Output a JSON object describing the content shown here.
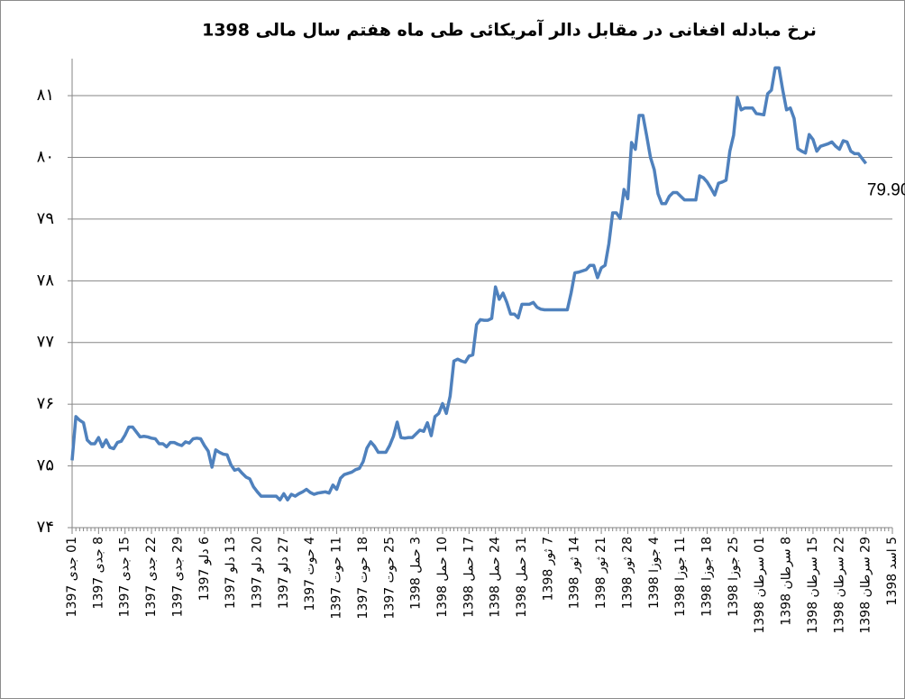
{
  "chart_data": {
    "type": "line",
    "title": "نرخ مبادله افغانی در مقابل دالر آمریکائی طی ماه هفتم  سال مالی 1398",
    "categories": [
      "01 جدی 1397",
      null,
      null,
      null,
      null,
      null,
      null,
      "8 جدی 1397",
      null,
      null,
      null,
      null,
      null,
      null,
      "15 جدی 1397",
      null,
      null,
      null,
      null,
      null,
      null,
      "22 جدی 1397",
      null,
      null,
      null,
      null,
      null,
      null,
      "29 جدی 1397",
      null,
      null,
      null,
      null,
      null,
      null,
      "6 دلو 1397",
      null,
      null,
      null,
      null,
      null,
      null,
      "13 دلو 1397",
      null,
      null,
      null,
      null,
      null,
      null,
      "20 دلو 1397",
      null,
      null,
      null,
      null,
      null,
      null,
      "27 دلو 1397",
      null,
      null,
      null,
      null,
      null,
      null,
      "4 حوت 1397",
      null,
      null,
      null,
      null,
      null,
      null,
      "11 حوت 1397",
      null,
      null,
      null,
      null,
      null,
      null,
      "18 حوت 1397",
      null,
      null,
      null,
      null,
      null,
      null,
      "25 حوت 1397",
      null,
      null,
      null,
      null,
      null,
      null,
      "3 حمل 1398",
      null,
      null,
      null,
      null,
      null,
      null,
      "10 حمل 1398",
      null,
      null,
      null,
      null,
      null,
      null,
      "17 حمل 1398",
      null,
      null,
      null,
      null,
      null,
      null,
      "24 حمل 1398",
      null,
      null,
      null,
      null,
      null,
      null,
      "31 حمل 1398",
      null,
      null,
      null,
      null,
      null,
      null,
      "7 ثور 1398",
      null,
      null,
      null,
      null,
      null,
      null,
      "14 ثور 1398",
      null,
      null,
      null,
      null,
      null,
      null,
      "21 ثور 1398",
      null,
      null,
      null,
      null,
      null,
      null,
      "28 ثور 1398",
      null,
      null,
      null,
      null,
      null,
      null,
      "4 جوزا 1398",
      null,
      null,
      null,
      null,
      null,
      null,
      "11 جوزا 1398",
      null,
      null,
      null,
      null,
      null,
      null,
      "18 جوزا 1398",
      null,
      null,
      null,
      null,
      null,
      null,
      "25 جوزا 1398",
      null,
      null,
      null,
      null,
      null,
      null,
      "01 سرطان 1398",
      null,
      null,
      null,
      null,
      null,
      null,
      "8 سرطان 1398",
      null,
      null,
      null,
      null,
      null,
      null,
      "15 سرطان 1398",
      null,
      null,
      null,
      null,
      null,
      null,
      "22 سرطان 1398",
      null,
      null,
      null,
      null,
      null,
      null,
      "29 سرطان 1398",
      null,
      null,
      null,
      null,
      null,
      null,
      "5 اسد 1398"
    ],
    "series": [
      {
        "color": "#4f81bd",
        "values": [
          75.09,
          75.8,
          75.74,
          75.7,
          75.42,
          75.36,
          75.36,
          75.46,
          75.31,
          75.42,
          75.3,
          75.28,
          75.38,
          75.4,
          75.5,
          75.63,
          75.63,
          75.55,
          75.47,
          75.48,
          75.47,
          75.45,
          75.44,
          75.36,
          75.36,
          75.31,
          75.38,
          75.38,
          75.35,
          75.33,
          75.39,
          75.37,
          75.44,
          75.45,
          75.44,
          75.33,
          75.24,
          74.98,
          75.26,
          75.22,
          75.19,
          75.18,
          75.02,
          74.93,
          74.95,
          74.88,
          74.82,
          74.79,
          74.66,
          74.58,
          74.51,
          74.51,
          74.51,
          74.51,
          74.51,
          74.45,
          74.55,
          74.45,
          74.54,
          74.51,
          74.55,
          74.58,
          74.62,
          74.57,
          74.54,
          74.56,
          74.57,
          74.58,
          74.56,
          74.69,
          74.62,
          74.8,
          74.86,
          74.88,
          74.9,
          74.94,
          74.96,
          75.07,
          75.29,
          75.39,
          75.32,
          75.22,
          75.22,
          75.22,
          75.33,
          75.48,
          75.71,
          75.46,
          75.45,
          75.46,
          75.46,
          75.52,
          75.58,
          75.56,
          75.7,
          75.49,
          75.8,
          75.85,
          76.01,
          75.85,
          76.13,
          76.7,
          76.73,
          76.7,
          76.68,
          76.78,
          76.8,
          77.29,
          77.37,
          77.36,
          77.36,
          77.39,
          77.9,
          77.7,
          77.8,
          77.65,
          77.46,
          77.46,
          77.4,
          77.62,
          77.62,
          77.62,
          77.65,
          77.57,
          77.54,
          77.53,
          77.53,
          77.53,
          77.53,
          77.53,
          77.53,
          77.53,
          77.8,
          78.13,
          78.14,
          78.16,
          78.18,
          78.25,
          78.25,
          78.05,
          78.21,
          78.25,
          78.6,
          79.1,
          79.1,
          79.01,
          79.48,
          79.33,
          80.24,
          80.13,
          80.68,
          80.68,
          80.35,
          80.0,
          79.8,
          79.41,
          79.25,
          79.25,
          79.37,
          79.43,
          79.43,
          79.37,
          79.31,
          79.31,
          79.31,
          79.31,
          79.7,
          79.67,
          79.6,
          79.5,
          79.39,
          79.58,
          79.6,
          79.63,
          80.1,
          80.36,
          80.97,
          80.77,
          80.8,
          80.8,
          80.8,
          80.71,
          80.7,
          80.69,
          81.03,
          81.09,
          81.45,
          81.45,
          81.09,
          80.77,
          80.8,
          80.63,
          80.14,
          80.1,
          80.07,
          80.37,
          80.29,
          80.1,
          80.18,
          80.2,
          80.22,
          80.25,
          80.18,
          80.13,
          80.27,
          80.25,
          80.1,
          80.06,
          80.06,
          79.98,
          79.9,
          null,
          null,
          null,
          null,
          null,
          null,
          null
        ],
        "value_labels": [
          null,
          null,
          null,
          null,
          null,
          null,
          null,
          null,
          null,
          null,
          null,
          null,
          null,
          null,
          null,
          null,
          null,
          null,
          null,
          null,
          null,
          null,
          null,
          null,
          null,
          null,
          null,
          null,
          null,
          null,
          null,
          null,
          null,
          null,
          null,
          null,
          null,
          null,
          null,
          null,
          null,
          null,
          null,
          null,
          null,
          null,
          null,
          null,
          null,
          null,
          null,
          null,
          null,
          null,
          null,
          null,
          null,
          null,
          null,
          null,
          null,
          null,
          null,
          null,
          null,
          null,
          null,
          null,
          null,
          null,
          null,
          null,
          null,
          null,
          null,
          null,
          null,
          null,
          null,
          null,
          null,
          null,
          null,
          null,
          null,
          null,
          null,
          null,
          null,
          null,
          null,
          null,
          null,
          null,
          null,
          null,
          null,
          null,
          null,
          null,
          null,
          null,
          null,
          null,
          null,
          null,
          null,
          null,
          null,
          null,
          null,
          null,
          null,
          null,
          null,
          null,
          null,
          null,
          null,
          null,
          null,
          null,
          null,
          null,
          null,
          null,
          null,
          null,
          null,
          null,
          null,
          null,
          null,
          null,
          null,
          null,
          null,
          null,
          null,
          null,
          null,
          null,
          null,
          null,
          null,
          null,
          null,
          null,
          null,
          null,
          null,
          null,
          null,
          null,
          null,
          null,
          null,
          null,
          null,
          null,
          null,
          null,
          null,
          null,
          null,
          null,
          null,
          null,
          null,
          null,
          null,
          null,
          null,
          null,
          null,
          null,
          null,
          null,
          null,
          null,
          null,
          null,
          null,
          null,
          null,
          null,
          null,
          null,
          null,
          null,
          null,
          null,
          null,
          null,
          null,
          null,
          null,
          null,
          null,
          null,
          null,
          null,
          null,
          null,
          null,
          null,
          null,
          null,
          null,
          null,
          "79.90",
          null,
          null,
          null,
          null,
          null,
          null,
          null
        ]
      }
    ],
    "ylim": [
      74,
      81.6
    ],
    "yticks": [
      {
        "value": 74,
        "label": "۷۴"
      },
      {
        "value": 75,
        "label": "۷۵"
      },
      {
        "value": 76,
        "label": "۷۶"
      },
      {
        "value": 77,
        "label": "۷۷"
      },
      {
        "value": 78,
        "label": "۷۸"
      },
      {
        "value": 79,
        "label": "۷۹"
      },
      {
        "value": 80,
        "label": "۸۰"
      },
      {
        "value": 81,
        "label": "۸۱"
      }
    ],
    "grid": true
  }
}
